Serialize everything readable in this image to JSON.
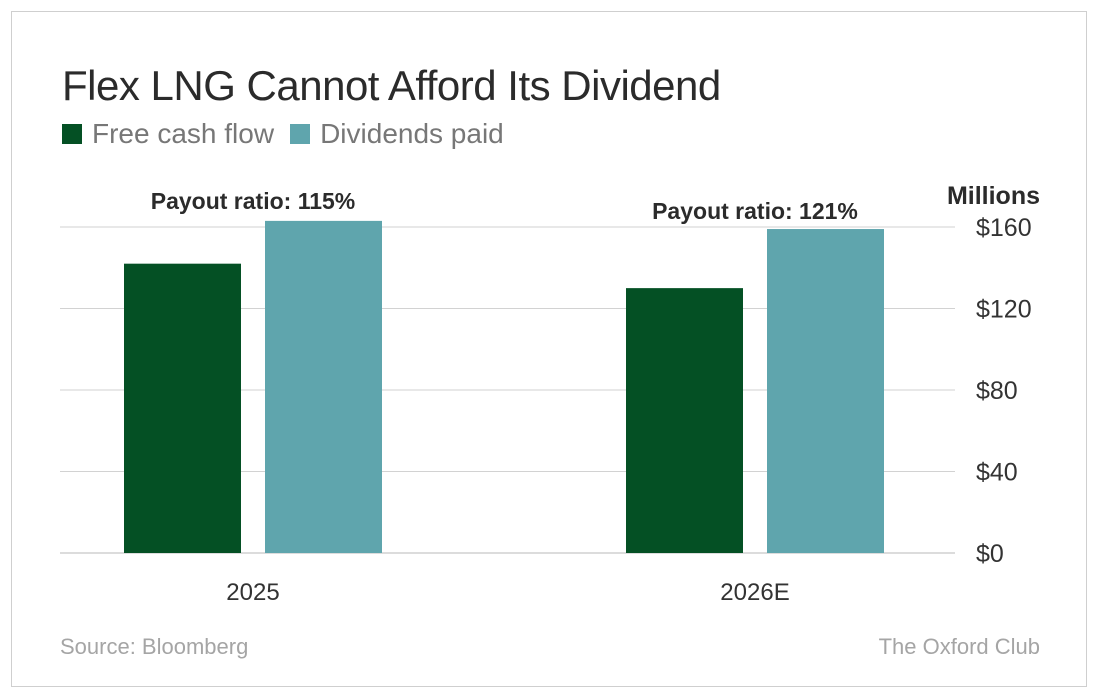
{
  "chart_data": {
    "type": "bar",
    "title": "Flex LNG Cannot Afford Its Dividend",
    "categories": [
      "2025",
      "2026E"
    ],
    "series": [
      {
        "name": "Free cash flow",
        "color": "#045024",
        "values": [
          142,
          130
        ]
      },
      {
        "name": "Dividends paid",
        "color": "#5fa5ad",
        "values": [
          163,
          159
        ]
      }
    ],
    "annotations": [
      "Payout ratio: 115%",
      "Payout ratio: 121%"
    ],
    "ylabel": "Millions",
    "ylim": [
      0,
      160
    ],
    "yticks": [
      {
        "value": 0,
        "label": "$0"
      },
      {
        "value": 40,
        "label": "$40"
      },
      {
        "value": 80,
        "label": "$80"
      },
      {
        "value": 120,
        "label": "$120"
      },
      {
        "value": 160,
        "label": "$160"
      }
    ],
    "grid": true,
    "legend": "top-left"
  },
  "footer": {
    "source": "Source: Bloomberg",
    "brand": "The Oxford Club"
  }
}
